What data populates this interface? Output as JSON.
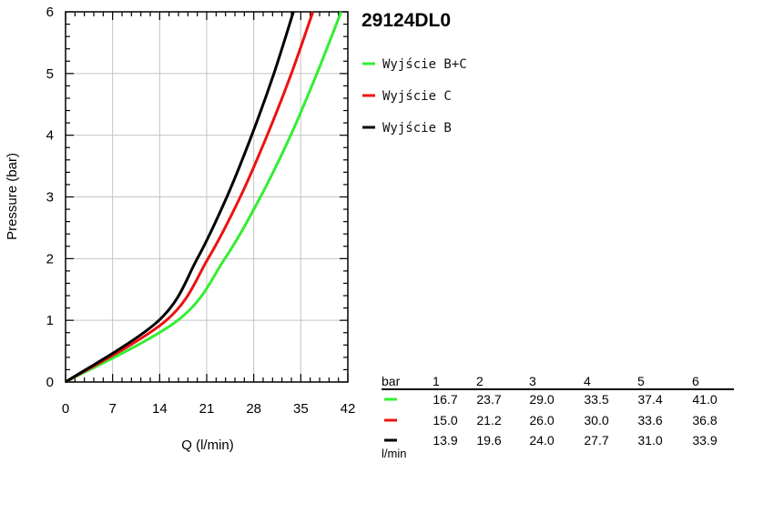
{
  "chart_data": {
    "type": "line",
    "title": "29124DL0",
    "xlabel": "Q (l/min)",
    "ylabel": "Pressure (bar)",
    "xlim": [
      0,
      42
    ],
    "ylim": [
      0,
      6
    ],
    "x_ticks": [
      0,
      7,
      14,
      21,
      28,
      35,
      42
    ],
    "y_ticks": [
      0,
      1,
      2,
      3,
      4,
      5,
      6
    ],
    "grid": true,
    "legend_position": "right",
    "series": [
      {
        "name": "Wyjście B+C",
        "color": "#33ee33",
        "x": [
          0,
          16.7,
          23.7,
          29.0,
          33.5,
          37.4,
          41.0
        ],
        "y": [
          0,
          1,
          2,
          3,
          4,
          5,
          6
        ]
      },
      {
        "name": "Wyjście C",
        "color": "#ee1111",
        "x": [
          0,
          15.0,
          21.2,
          26.0,
          30.0,
          33.6,
          36.8
        ],
        "y": [
          0,
          1,
          2,
          3,
          4,
          5,
          6
        ]
      },
      {
        "name": "Wyjście B",
        "color": "#000000",
        "x": [
          0,
          13.9,
          19.6,
          24.0,
          27.7,
          31.0,
          33.9
        ],
        "y": [
          0,
          1,
          2,
          3,
          4,
          5,
          6
        ]
      }
    ],
    "table": {
      "header_label": "bar",
      "columns": [
        "1",
        "2",
        "3",
        "4",
        "5",
        "6"
      ],
      "rows": [
        {
          "color": "#33ee33",
          "values": [
            "16.7",
            "23.7",
            "29.0",
            "33.5",
            "37.4",
            "41.0"
          ]
        },
        {
          "color": "#ee1111",
          "values": [
            "15.0",
            "21.2",
            "26.0",
            "30.0",
            "33.6",
            "36.8"
          ]
        },
        {
          "color": "#000000",
          "values": [
            "13.9",
            "19.6",
            "24.0",
            "27.7",
            "31.0",
            "33.9"
          ]
        }
      ],
      "unit_label": "l/min"
    }
  }
}
